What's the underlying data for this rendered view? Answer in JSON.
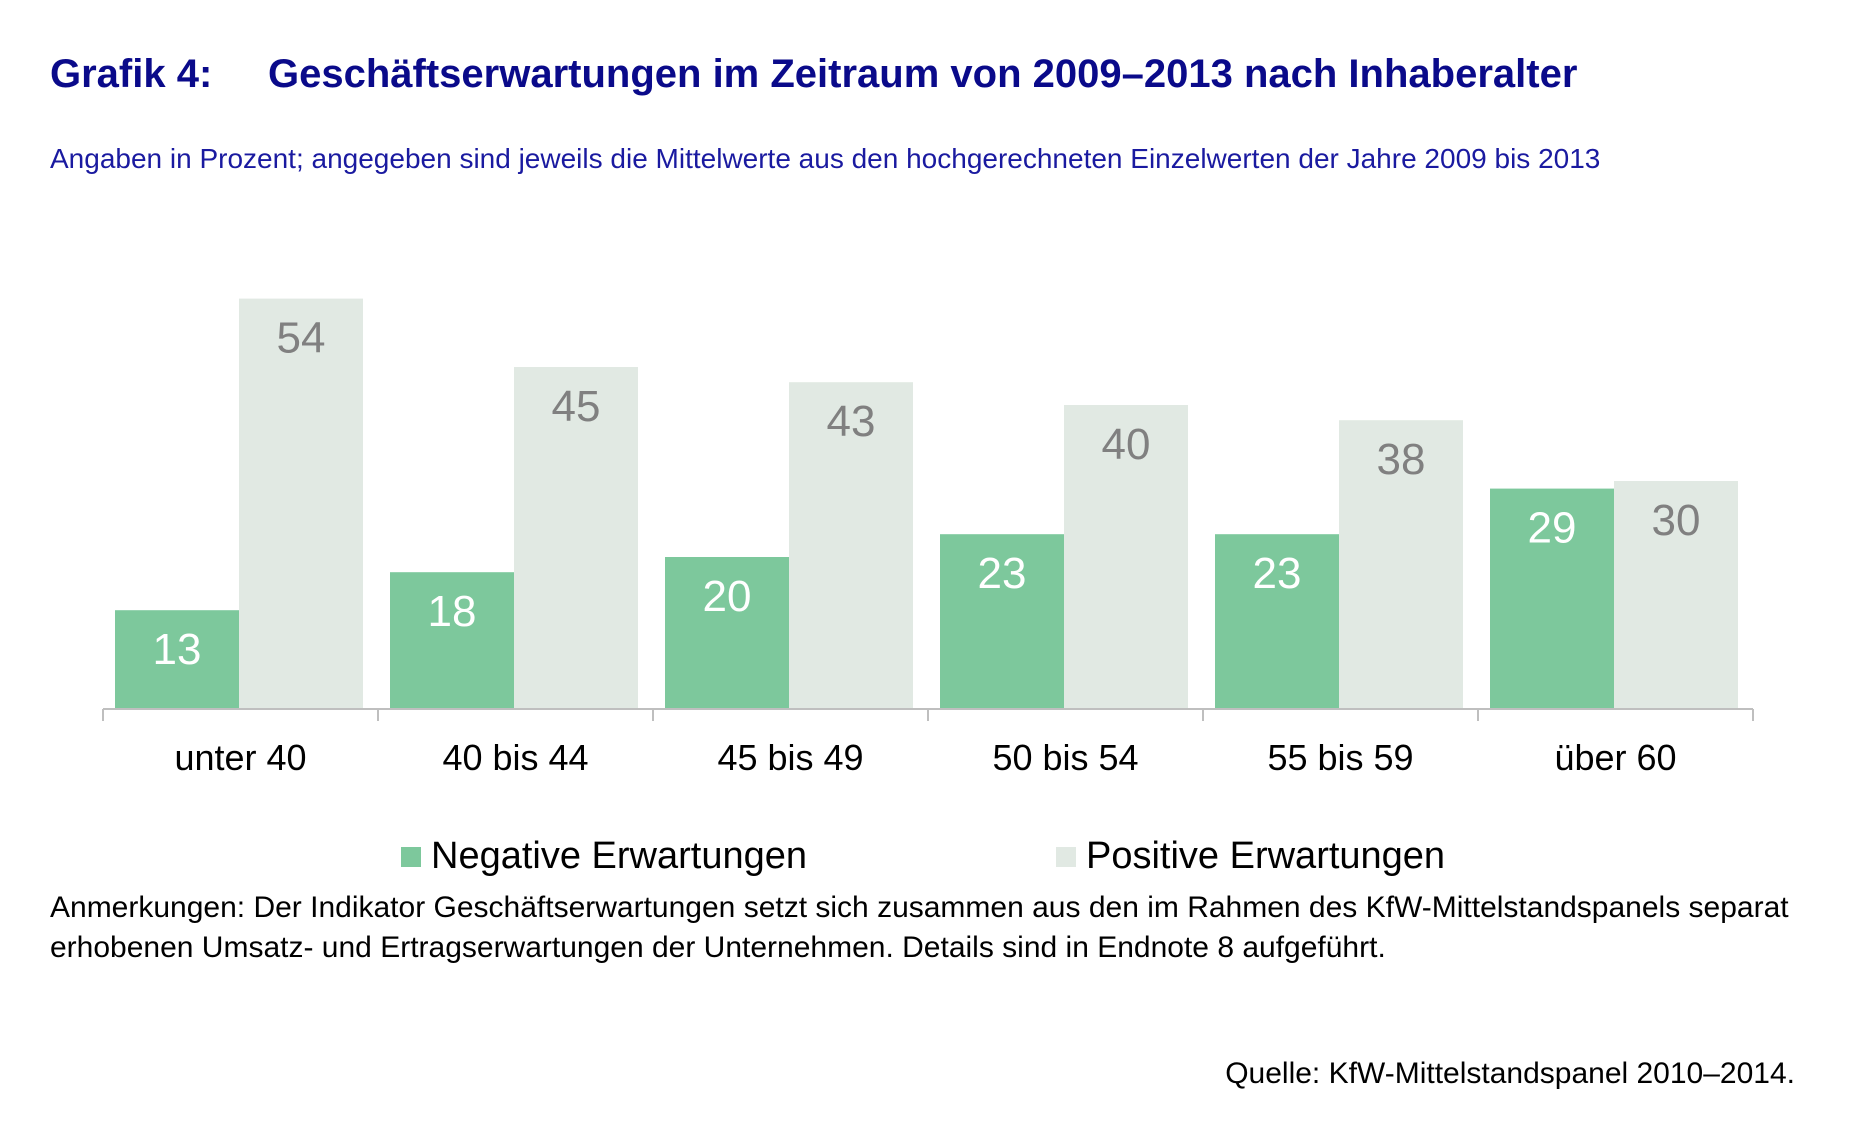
{
  "header": {
    "number": "Grafik 4:",
    "title": "Geschäftserwartungen im Zeitraum von 2009–2013 nach Inhaberalter",
    "subtitle": "Angaben in Prozent; angegeben sind jeweils die Mittelwerte aus den hochgerechneten Einzelwerten der Jahre 2009 bis 2013"
  },
  "chart_data": {
    "type": "bar",
    "categories": [
      "unter 40",
      "40 bis 44",
      "45 bis 49",
      "50 bis 54",
      "55 bis 59",
      "über 60"
    ],
    "series": [
      {
        "name": "Negative Erwartungen",
        "color": "#7dc89c",
        "label_color": "#ffffff",
        "values": [
          13,
          18,
          20,
          23,
          23,
          29
        ]
      },
      {
        "name": "Positive Erwartungen",
        "color": "#e1e9e3",
        "label_color": "#808080",
        "values": [
          54,
          45,
          43,
          40,
          38,
          30
        ]
      }
    ],
    "ylim": [
      0,
      60
    ],
    "grid": false,
    "legend": "bottom",
    "axis_color": "#bfbfbf"
  },
  "footer": {
    "notes": "Anmerkungen: Der Indikator Geschäftserwartungen setzt sich zusammen aus den im Rahmen des KfW-Mittelstandspanels separat erhobenen Umsatz- und Ertragserwartungen der Unternehmen. Details sind in Endnote 8 aufgeführt.",
    "source": "Quelle: KfW-Mittelstandspanel 2010–2014."
  }
}
